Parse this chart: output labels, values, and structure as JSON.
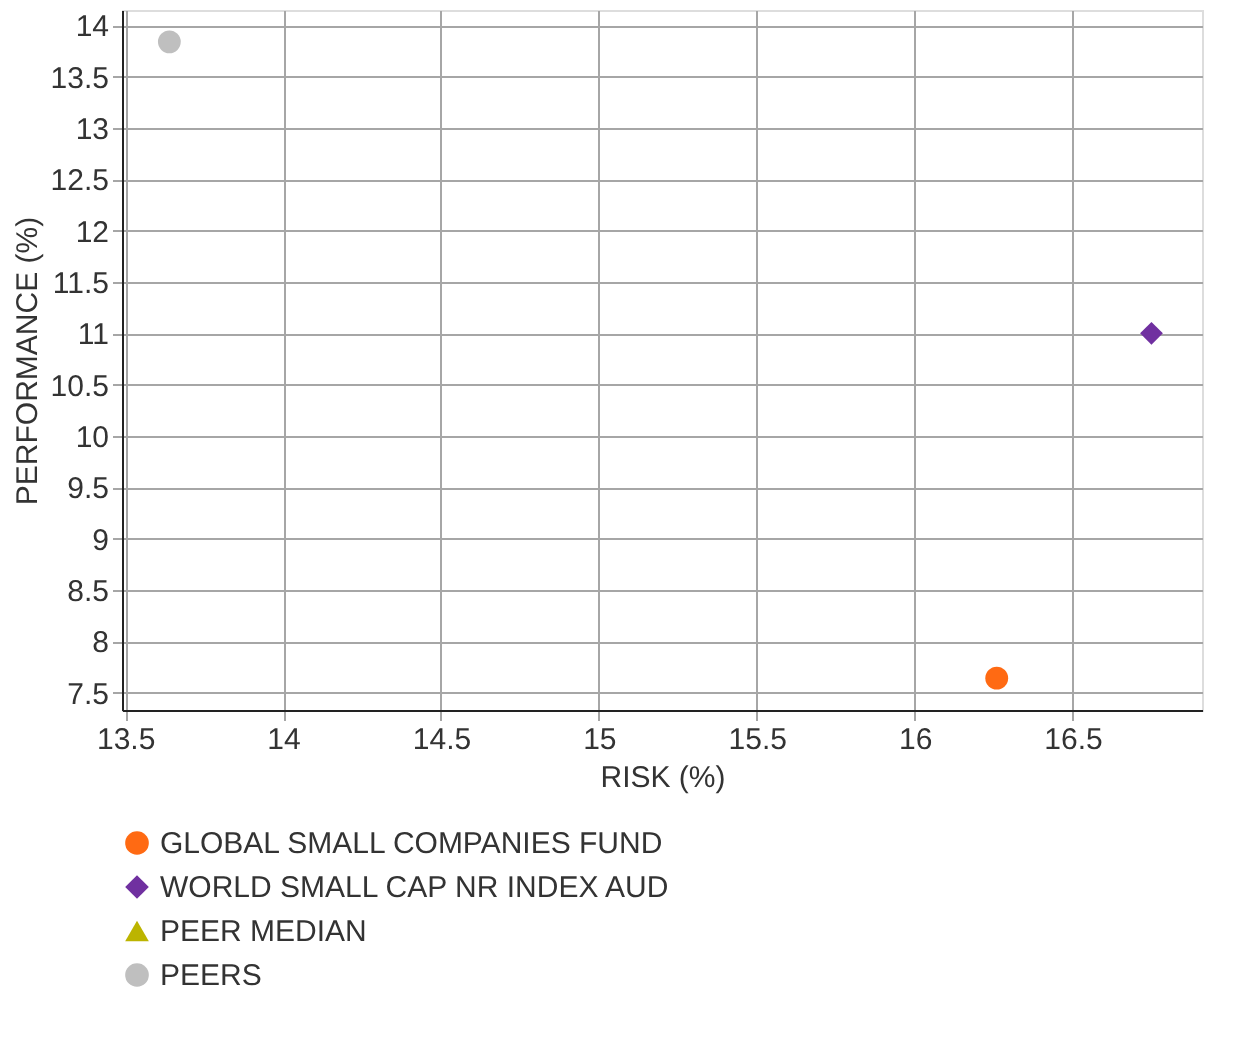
{
  "chart_data": {
    "type": "scatter",
    "xlabel": "RISK (%)",
    "ylabel": "PERFORMANCE (%)",
    "xlim": [
      13.49,
      16.91
    ],
    "xticks": [
      13.5,
      14,
      14.5,
      15,
      15.5,
      16,
      16.5
    ],
    "ylim": [
      7.33,
      14.15
    ],
    "yticks": [
      7.5,
      8,
      8.5,
      9,
      9.5,
      10,
      10.5,
      11,
      11.5,
      12,
      12.5,
      13,
      13.5,
      14
    ],
    "grid": true,
    "legend": "bottom",
    "series": [
      {
        "name": "GLOBAL SMALL COMPANIES FUND",
        "color": "#ff6a13",
        "marker": "circle",
        "x": [
          16.26
        ],
        "values": [
          7.64
        ]
      },
      {
        "name": "WORLD SMALL CAP NR INDEX AUD",
        "color": "#7030a0",
        "marker": "diamond",
        "x": [
          16.75
        ],
        "values": [
          11.0
        ]
      },
      {
        "name": "PEER MEDIAN",
        "color": "#bcb400",
        "marker": "triangle"
      },
      {
        "name": "PEERS",
        "color": "#bfbfbf",
        "marker": "circle",
        "x": [
          13.64
        ],
        "values": [
          13.84
        ]
      }
    ]
  }
}
